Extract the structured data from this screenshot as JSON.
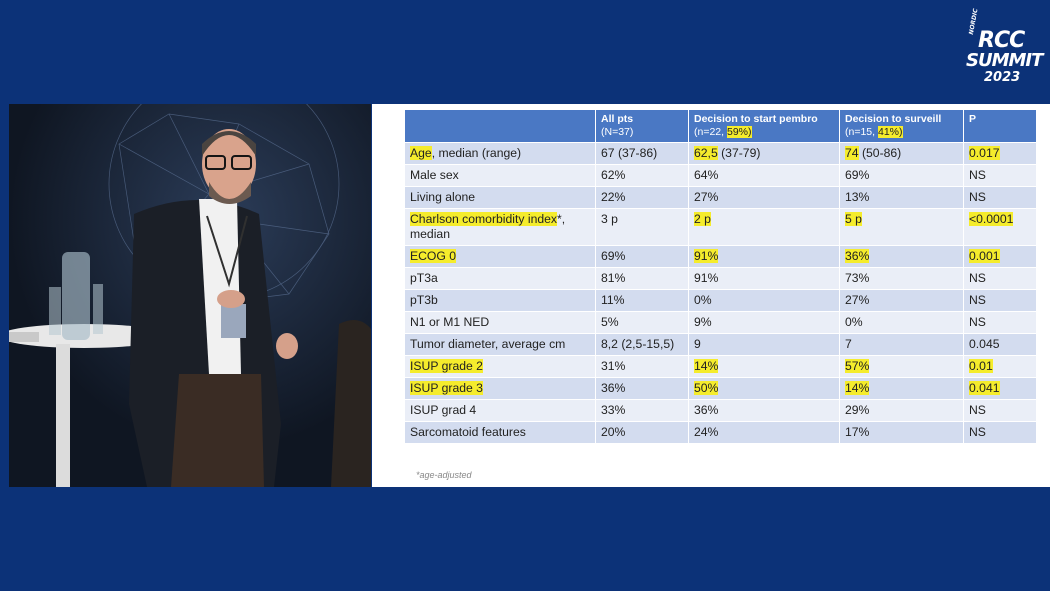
{
  "logo": {
    "small": "NORDIC",
    "line1": "RCC",
    "line2": "SUMMIT",
    "line3": "2023"
  },
  "table": {
    "headers": [
      {
        "title": "",
        "sub": "",
        "sub_hl": "",
        "sub_end": ""
      },
      {
        "title": "All pts",
        "sub": "(N=37)",
        "sub_hl": "",
        "sub_end": ""
      },
      {
        "title": "Decision to start pembro",
        "sub": "(n=22, ",
        "sub_hl": "59%)",
        "sub_end": ""
      },
      {
        "title": "Decision to surveill",
        "sub": "(n=15, ",
        "sub_hl": "41%)",
        "sub_end": ""
      },
      {
        "title": "P",
        "sub": "",
        "sub_hl": "",
        "sub_end": ""
      }
    ],
    "rows": [
      {
        "label_hl": "Age",
        "label_rest": ", median (range)",
        "all": "67 (37-86)",
        "pembro_hl": "62,5",
        "pembro_rest": " (37-79)",
        "surv_hl": "74",
        "surv_rest": " (50-86)",
        "p_hl": "0.017",
        "p": ""
      },
      {
        "label_hl": "",
        "label_rest": "Male sex",
        "all": "62%",
        "pembro_hl": "",
        "pembro_rest": "64%",
        "surv_hl": "",
        "surv_rest": "69%",
        "p_hl": "",
        "p": "NS"
      },
      {
        "label_hl": "",
        "label_rest": "Living alone",
        "all": "22%",
        "pembro_hl": "",
        "pembro_rest": "27%",
        "surv_hl": "",
        "surv_rest": "13%",
        "p_hl": "",
        "p": "NS"
      },
      {
        "label_hl": "Charlson comorbidity index",
        "label_rest": "*, median",
        "all": "3 p",
        "pembro_hl": "2 p",
        "pembro_rest": "",
        "surv_hl": "5 p",
        "surv_rest": "",
        "p_hl": "<0.0001",
        "p": ""
      },
      {
        "label_hl": "ECOG 0",
        "label_rest": "",
        "all": "69%",
        "pembro_hl": "91%",
        "pembro_rest": "",
        "surv_hl": "36%",
        "surv_rest": "",
        "p_hl": "0.001",
        "p": ""
      },
      {
        "label_hl": "",
        "label_rest": "pT3a",
        "all": "81%",
        "pembro_hl": "",
        "pembro_rest": "91%",
        "surv_hl": "",
        "surv_rest": "73%",
        "p_hl": "",
        "p": "NS"
      },
      {
        "label_hl": "",
        "label_rest": "pT3b",
        "all": "11%",
        "pembro_hl": "",
        "pembro_rest": "0%",
        "surv_hl": "",
        "surv_rest": "27%",
        "p_hl": "",
        "p": "NS"
      },
      {
        "label_hl": "",
        "label_rest": "N1 or M1 NED",
        "all": "5%",
        "pembro_hl": "",
        "pembro_rest": "9%",
        "surv_hl": "",
        "surv_rest": "0%",
        "p_hl": "",
        "p": "NS"
      },
      {
        "label_hl": "",
        "label_rest": "Tumor diameter, average  cm",
        "all": "8,2 (2,5-15,5)",
        "pembro_hl": "",
        "pembro_rest": "9",
        "surv_hl": "",
        "surv_rest": "7",
        "p_hl": "",
        "p": "0.045"
      },
      {
        "label_hl": "ISUP grade 2",
        "label_rest": "",
        "all": "31%",
        "pembro_hl": "14%",
        "pembro_rest": "",
        "surv_hl": "57%",
        "surv_rest": "",
        "p_hl": "0.01",
        "p": ""
      },
      {
        "label_hl": "ISUP grade 3",
        "label_rest": "",
        "all": "36%",
        "pembro_hl": "50%",
        "pembro_rest": "",
        "surv_hl": "14%",
        "surv_rest": "",
        "p_hl": "0.041",
        "p": ""
      },
      {
        "label_hl": "",
        "label_rest": "ISUP grad 4",
        "all": "33%",
        "pembro_hl": "",
        "pembro_rest": "36%",
        "surv_hl": "",
        "surv_rest": "29%",
        "p_hl": "",
        "p": "NS"
      },
      {
        "label_hl": "",
        "label_rest": "Sarcomatoid features",
        "all": "20%",
        "pembro_hl": "",
        "pembro_rest": "24%",
        "surv_hl": "",
        "surv_rest": "17%",
        "p_hl": "",
        "p": "NS"
      }
    ]
  },
  "footnote": "*age-adjusted",
  "colors": {
    "background": "#0c3278",
    "header": "#4a78c4",
    "row_dark": "#d3dcef",
    "row_light": "#eaeef7",
    "highlight": "#f5ec2c"
  }
}
